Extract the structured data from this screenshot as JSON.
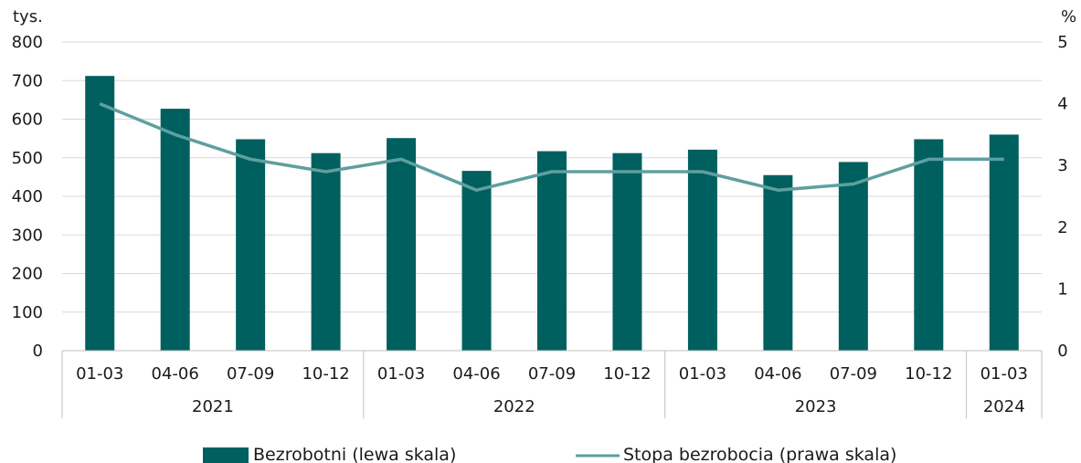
{
  "chart_data": {
    "type": "bar",
    "left_unit": "tys.",
    "right_unit": "%",
    "categories": [
      "01-03",
      "04-06",
      "07-09",
      "10-12",
      "01-03",
      "04-06",
      "07-09",
      "10-12",
      "01-03",
      "04-06",
      "07-09",
      "10-12",
      "01-03"
    ],
    "year_groups": [
      {
        "label": "2021",
        "count": 4
      },
      {
        "label": "2022",
        "count": 4
      },
      {
        "label": "2023",
        "count": 4
      },
      {
        "label": "2024",
        "count": 1
      }
    ],
    "left_axis": {
      "ylim": [
        0,
        800
      ],
      "ticks": [
        0,
        100,
        200,
        300,
        400,
        500,
        600,
        700,
        800
      ]
    },
    "right_axis": {
      "ylim": [
        0,
        5
      ],
      "ticks": [
        0,
        1,
        2,
        3,
        4,
        5
      ]
    },
    "series": [
      {
        "name": "Bezrobotni (lewa skala)",
        "type": "bar",
        "axis": "left",
        "color": "#00605f",
        "values": [
          712,
          627,
          548,
          512,
          551,
          466,
          517,
          512,
          521,
          455,
          489,
          548,
          560
        ]
      },
      {
        "name": "Stopa bezrobocia (prawa skala)",
        "type": "line",
        "axis": "right",
        "color": "#5f9fa0",
        "values": [
          4.0,
          3.5,
          3.1,
          2.9,
          3.1,
          2.6,
          2.9,
          2.9,
          2.9,
          2.6,
          2.7,
          3.1,
          3.1
        ]
      }
    ],
    "grid": true,
    "legend_position": "bottom"
  }
}
